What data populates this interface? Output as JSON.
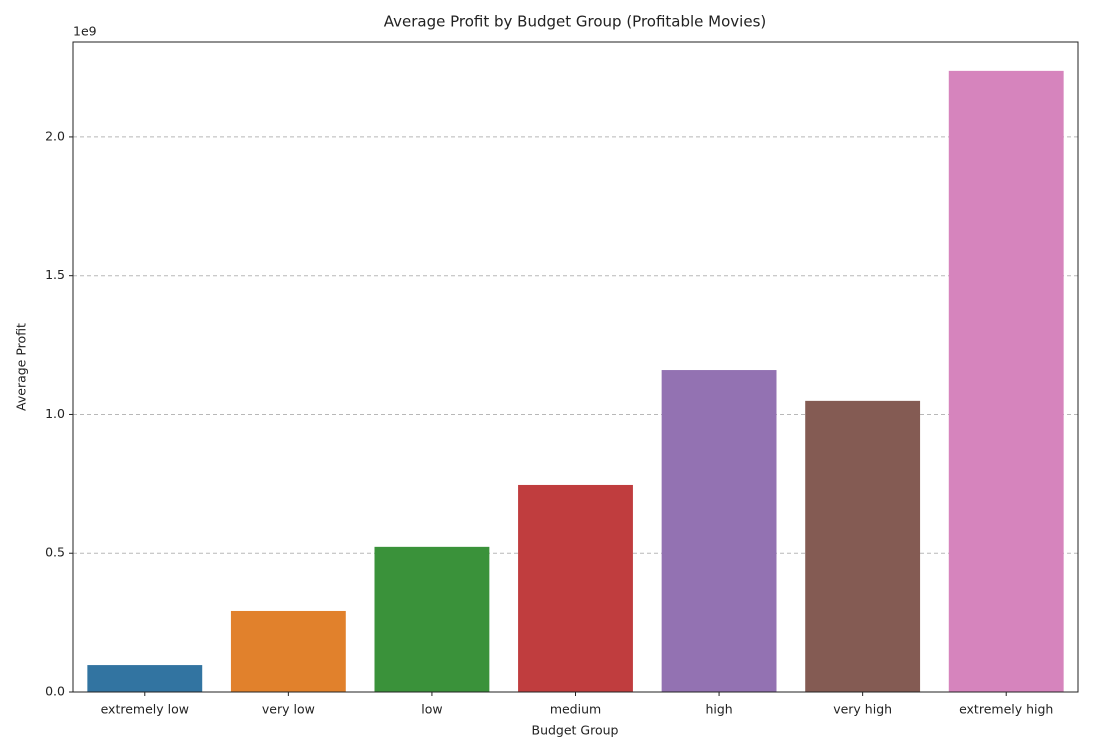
{
  "chart_data": {
    "type": "bar",
    "title": "Average Profit by Budget Group (Profitable Movies)",
    "x_label": "Budget Group",
    "y_label": "Average Profit",
    "y_offset_label": "1e9",
    "categories": [
      "extremely low",
      "very low",
      "low",
      "medium",
      "high",
      "very high",
      "extremely high"
    ],
    "values": [
      0.097,
      0.292,
      0.523,
      0.746,
      1.16,
      1.049,
      2.238
    ],
    "colors": [
      "#3274a1",
      "#e1812c",
      "#3a923a",
      "#c03d3e",
      "#9372b2",
      "#845b53",
      "#d684bd"
    ],
    "ylim": [
      0,
      2.342
    ],
    "yticks": [
      {
        "value": 0,
        "label": "0.0"
      },
      0.5,
      {
        "value": 1,
        "label": "1.0"
      },
      1.5,
      {
        "value": 2,
        "label": "2.0"
      }
    ],
    "grid": true
  }
}
